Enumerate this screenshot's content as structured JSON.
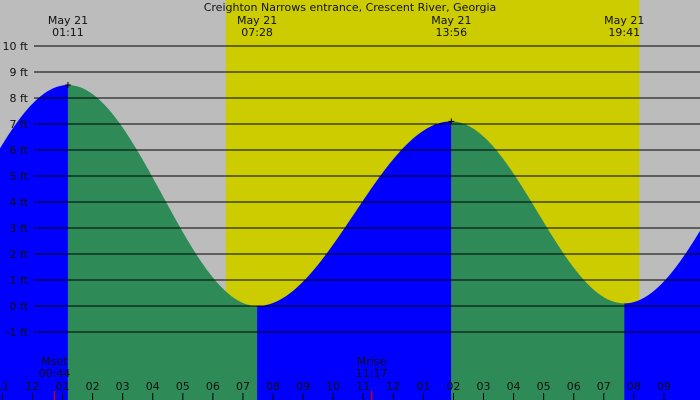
{
  "colors": {
    "background": "#bcbcbc",
    "daylight": "#cccc00",
    "rising": "#0000ff",
    "falling": "#2e8b57",
    "grid": "#000000",
    "moon_marker": "#cc0000"
  },
  "chart_data": {
    "type": "area",
    "title": "Creighton Narrows entrance, Crescent River, Georgia",
    "ylabel": "",
    "xlabel": "",
    "ylim": [
      -2,
      10
    ],
    "y_ticks": [
      10,
      9,
      8,
      7,
      6,
      5,
      4,
      3,
      2,
      1,
      0,
      -1
    ],
    "y_tick_labels": [
      "10 ft",
      "9 ft",
      "8 ft",
      "7 ft",
      "6 ft",
      "5 ft",
      "4 ft",
      "3 ft",
      "2 ft",
      "1 ft",
      "0 ft",
      "-1 ft"
    ],
    "x_hour_range": [
      -1.08,
      22.2
    ],
    "hour_ticks": [
      {
        "t": -1,
        "label": "11"
      },
      {
        "t": 0,
        "label": "12"
      },
      {
        "t": 1,
        "label": "01"
      },
      {
        "t": 2,
        "label": "02"
      },
      {
        "t": 3,
        "label": "03"
      },
      {
        "t": 4,
        "label": "04"
      },
      {
        "t": 5,
        "label": "05"
      },
      {
        "t": 6,
        "label": "06"
      },
      {
        "t": 7,
        "label": "07"
      },
      {
        "t": 8,
        "label": "08"
      },
      {
        "t": 9,
        "label": "09"
      },
      {
        "t": 10,
        "label": "10"
      },
      {
        "t": 11,
        "label": "11"
      },
      {
        "t": 12,
        "label": "12"
      },
      {
        "t": 13,
        "label": "01"
      },
      {
        "t": 14,
        "label": "02"
      },
      {
        "t": 15,
        "label": "03"
      },
      {
        "t": 16,
        "label": "04"
      },
      {
        "t": 17,
        "label": "05"
      },
      {
        "t": 18,
        "label": "06"
      },
      {
        "t": 19,
        "label": "07"
      },
      {
        "t": 20,
        "label": "08"
      },
      {
        "t": 21,
        "label": "09"
      }
    ],
    "daylight": {
      "start": 6.43,
      "end": 20.18
    },
    "tide_extremes": [
      {
        "t": -5.1,
        "h": 0.0,
        "type": "low"
      },
      {
        "t": 1.18,
        "h": 8.5,
        "type": "high",
        "date_label": "May 21",
        "time_label": "01:11"
      },
      {
        "t": 7.47,
        "h": 0.0,
        "type": "low",
        "date_label": "May 21",
        "time_label": "07:28"
      },
      {
        "t": 13.93,
        "h": 7.1,
        "type": "high",
        "date_label": "May 21",
        "time_label": "13:56"
      },
      {
        "t": 19.68,
        "h": 0.1,
        "type": "low",
        "date_label": "May 21",
        "time_label": "19:41"
      },
      {
        "t": 25.9,
        "h": 8.0,
        "type": "high"
      }
    ],
    "moon_events": [
      {
        "t": 0.73,
        "name": "Mset",
        "time_label": "00:44"
      },
      {
        "t": 11.28,
        "name": "Mrise",
        "time_label": "11:17"
      }
    ]
  }
}
